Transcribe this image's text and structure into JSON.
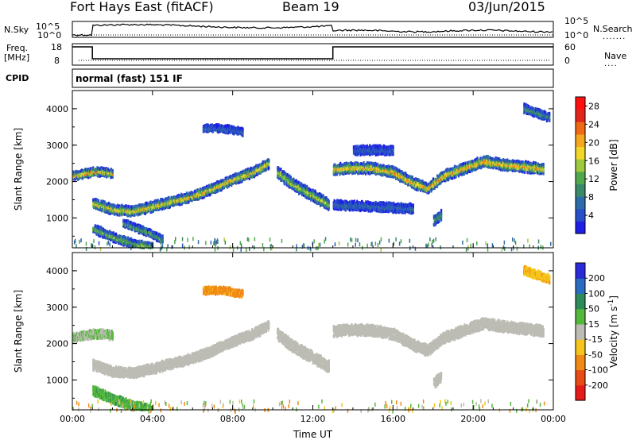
{
  "header": {
    "title": "Fort Hays East (fitACF)",
    "beam": "Beam 19",
    "date": "03/Jun/2015"
  },
  "summary": {
    "nsky_label": "N.Sky",
    "nsky_ticks": [
      "10^5",
      "10^0"
    ],
    "nsearch_label": "N.Search",
    "nsearch_ticks": [
      "10^5",
      "10^0"
    ],
    "freq_label_1": "Freq.",
    "freq_label_2": "[MHz]",
    "freq_ticks": [
      "18",
      "8"
    ],
    "nave_label": "Nave",
    "nave_ticks": [
      "60",
      "0"
    ],
    "cpid_label": "CPID",
    "cpid_text": "normal (fast) 151 IF"
  },
  "chart_data": [
    {
      "type": "heatmap",
      "name": "power",
      "ylabel": "Slant Range [km]",
      "ylim": [
        180,
        4500
      ],
      "yticks": [
        "1000",
        "2000",
        "3000",
        "4000"
      ],
      "xlim": [
        0,
        24
      ],
      "xticks": [
        "00:00",
        "04:00",
        "08:00",
        "12:00",
        "16:00",
        "20:00",
        "00:00"
      ],
      "colorbar": {
        "label": "Power [dB]",
        "ticks": [
          "4",
          "8",
          "12",
          "16",
          "20",
          "24",
          "28"
        ],
        "range": [
          0,
          30
        ],
        "colors": [
          "#1e1ee6",
          "#2850c8",
          "#2f6aa9",
          "#3a8a6a",
          "#52a84e",
          "#9fca3e",
          "#f0d728",
          "#f5a81d",
          "#f06a16",
          "#e3261c",
          "#ff1010"
        ]
      },
      "bands": [
        {
          "points": [
            [
              0.0,
              2200
            ],
            [
              1.0,
              2300
            ],
            [
              1.5,
              2310
            ],
            [
              2.0,
              2260
            ]
          ],
          "width": 180,
          "level": 22
        },
        {
          "points": [
            [
              1.0,
              1450
            ],
            [
              2.0,
              1270
            ],
            [
              3.0,
              1220
            ],
            [
              4.0,
              1360
            ],
            [
              6.0,
              1640
            ],
            [
              7.0,
              1850
            ],
            [
              8.0,
              2100
            ],
            [
              9.0,
              2300
            ],
            [
              9.8,
              2550
            ]
          ],
          "width": 220,
          "level": 20
        },
        {
          "points": [
            [
              1.0,
              750
            ],
            [
              2.0,
              520
            ],
            [
              3.0,
              330
            ],
            [
              4.0,
              220
            ]
          ],
          "width": 200,
          "level": 14
        },
        {
          "points": [
            [
              2.5,
              900
            ],
            [
              3.5,
              700
            ],
            [
              4.5,
              450
            ]
          ],
          "width": 160,
          "level": 12
        },
        {
          "points": [
            [
              10.2,
              2300
            ],
            [
              11.0,
              1950
            ],
            [
              12.0,
              1650
            ],
            [
              12.8,
              1400
            ]
          ],
          "width": 260,
          "level": 16
        },
        {
          "points": [
            [
              13.0,
              2380
            ],
            [
              14.0,
              2420
            ],
            [
              15.0,
              2400
            ],
            [
              16.0,
              2300
            ],
            [
              17.0,
              2000
            ],
            [
              17.7,
              1850
            ],
            [
              18.5,
              2200
            ],
            [
              19.5,
              2400
            ],
            [
              20.5,
              2600
            ],
            [
              21.5,
              2500
            ],
            [
              22.5,
              2450
            ],
            [
              23.5,
              2380
            ]
          ],
          "width": 240,
          "level": 22
        },
        {
          "points": [
            [
              13.0,
              1400
            ],
            [
              15.0,
              1350
            ],
            [
              17.0,
              1300
            ]
          ],
          "width": 200,
          "level": 6
        },
        {
          "points": [
            [
              18.0,
              950
            ],
            [
              18.4,
              1150
            ]
          ],
          "width": 220,
          "level": 10
        },
        {
          "points": [
            [
              22.5,
              4050
            ],
            [
              23.8,
              3800
            ]
          ],
          "width": 180,
          "level": 10
        },
        {
          "points": [
            [
              6.5,
              3500
            ],
            [
              7.5,
              3500
            ],
            [
              8.5,
              3400
            ]
          ],
          "width": 150,
          "level": 6
        },
        {
          "points": [
            [
              14.0,
              2900
            ],
            [
              16.0,
              2900
            ]
          ],
          "width": 200,
          "level": 5
        }
      ]
    },
    {
      "type": "heatmap",
      "name": "velocity",
      "xlabel": "Time UT",
      "ylabel": "Slant Range [km]",
      "ylim": [
        180,
        4500
      ],
      "yticks": [
        "1000",
        "2000",
        "3000",
        "4000"
      ],
      "xlim": [
        0,
        24
      ],
      "xticks": [
        "00:00",
        "04:00",
        "08:00",
        "12:00",
        "16:00",
        "20:00",
        "00:00"
      ],
      "colorbar": {
        "label": "Velocity [m s",
        "label_sup": "-1",
        "label_end": "]",
        "ticks": [
          "200",
          "100",
          "50",
          "15",
          "-15",
          "-50",
          "-100",
          "-200"
        ],
        "colors": [
          "#2a2ad8",
          "#2a6cc0",
          "#2e8a5a",
          "#55b83c",
          "#bcbcb4",
          "#f5c51c",
          "#f08a14",
          "#e84c14",
          "#e61a1a"
        ]
      },
      "bands": [
        {
          "points": [
            [
              0.0,
              2200
            ],
            [
              1.0,
              2300
            ],
            [
              1.5,
              2310
            ],
            [
              2.0,
              2260
            ]
          ],
          "width": 180,
          "level": 15
        },
        {
          "points": [
            [
              1.0,
              1450
            ],
            [
              2.0,
              1270
            ],
            [
              3.0,
              1220
            ],
            [
              4.0,
              1360
            ],
            [
              6.0,
              1640
            ],
            [
              7.0,
              1850
            ],
            [
              8.0,
              2100
            ],
            [
              9.0,
              2300
            ],
            [
              9.8,
              2550
            ]
          ],
          "width": 220,
          "level": 0
        },
        {
          "points": [
            [
              1.0,
              750
            ],
            [
              2.0,
              520
            ],
            [
              3.0,
              330
            ],
            [
              4.0,
              220
            ]
          ],
          "width": 200,
          "level": 40
        },
        {
          "points": [
            [
              10.2,
              2300
            ],
            [
              11.0,
              1950
            ],
            [
              12.0,
              1650
            ],
            [
              12.8,
              1400
            ]
          ],
          "width": 260,
          "level": 0
        },
        {
          "points": [
            [
              13.0,
              2380
            ],
            [
              14.0,
              2420
            ],
            [
              15.0,
              2400
            ],
            [
              16.0,
              2300
            ],
            [
              17.0,
              2000
            ],
            [
              17.7,
              1850
            ],
            [
              18.5,
              2200
            ],
            [
              19.5,
              2400
            ],
            [
              20.5,
              2600
            ],
            [
              21.5,
              2500
            ],
            [
              22.5,
              2450
            ],
            [
              23.5,
              2380
            ]
          ],
          "width": 240,
          "level": 0
        },
        {
          "points": [
            [
              18.0,
              950
            ],
            [
              18.4,
              1150
            ]
          ],
          "width": 220,
          "level": 0
        },
        {
          "points": [
            [
              22.5,
              4050
            ],
            [
              23.8,
              3800
            ]
          ],
          "width": 180,
          "level": -40
        },
        {
          "points": [
            [
              6.5,
              3500
            ],
            [
              7.5,
              3500
            ],
            [
              8.5,
              3400
            ]
          ],
          "width": 150,
          "level": -60
        }
      ]
    }
  ]
}
